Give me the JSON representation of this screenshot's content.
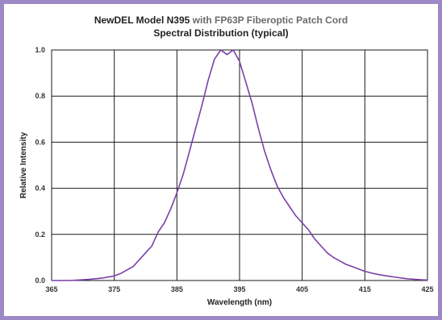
{
  "chart_data": {
    "type": "line",
    "title_model": "NewDEL Model N395",
    "title_rest": "with FP63P Fiberoptic Patch Cord",
    "subtitle": "Spectral Distribution (typical)",
    "xlabel": "Wavelength (nm)",
    "ylabel": "Relative Intensity",
    "xlim": [
      365,
      425
    ],
    "ylim": [
      0,
      1.0
    ],
    "x_ticks": [
      365,
      375,
      385,
      395,
      405,
      415,
      425
    ],
    "y_ticks": [
      "0.0",
      "0.2",
      "0.4",
      "0.6",
      "0.8",
      "1.0"
    ],
    "grid": true,
    "line_color": "#7b3fa8",
    "series": [
      {
        "x": [
          365,
          368,
          371,
          373,
          375,
          376,
          377,
          378,
          379,
          380,
          381,
          382,
          383,
          384,
          385,
          386,
          387,
          388,
          389,
          390,
          391,
          392,
          393,
          394,
          395,
          396,
          397,
          398,
          399,
          400,
          401,
          402,
          403,
          404,
          405,
          406,
          407,
          408,
          409,
          410,
          411,
          412,
          413,
          414,
          415,
          416,
          417,
          418,
          419,
          420,
          421,
          422,
          423,
          424,
          425
        ],
        "y": [
          0.0,
          0.0,
          0.005,
          0.01,
          0.02,
          0.03,
          0.045,
          0.06,
          0.09,
          0.12,
          0.15,
          0.21,
          0.25,
          0.31,
          0.38,
          0.46,
          0.56,
          0.66,
          0.76,
          0.87,
          0.96,
          1.0,
          0.98,
          1.0,
          0.95,
          0.86,
          0.77,
          0.66,
          0.56,
          0.48,
          0.41,
          0.36,
          0.32,
          0.28,
          0.25,
          0.22,
          0.18,
          0.15,
          0.12,
          0.1,
          0.085,
          0.07,
          0.06,
          0.05,
          0.04,
          0.033,
          0.027,
          0.022,
          0.018,
          0.014,
          0.01,
          0.007,
          0.005,
          0.003,
          0.002
        ]
      }
    ]
  }
}
